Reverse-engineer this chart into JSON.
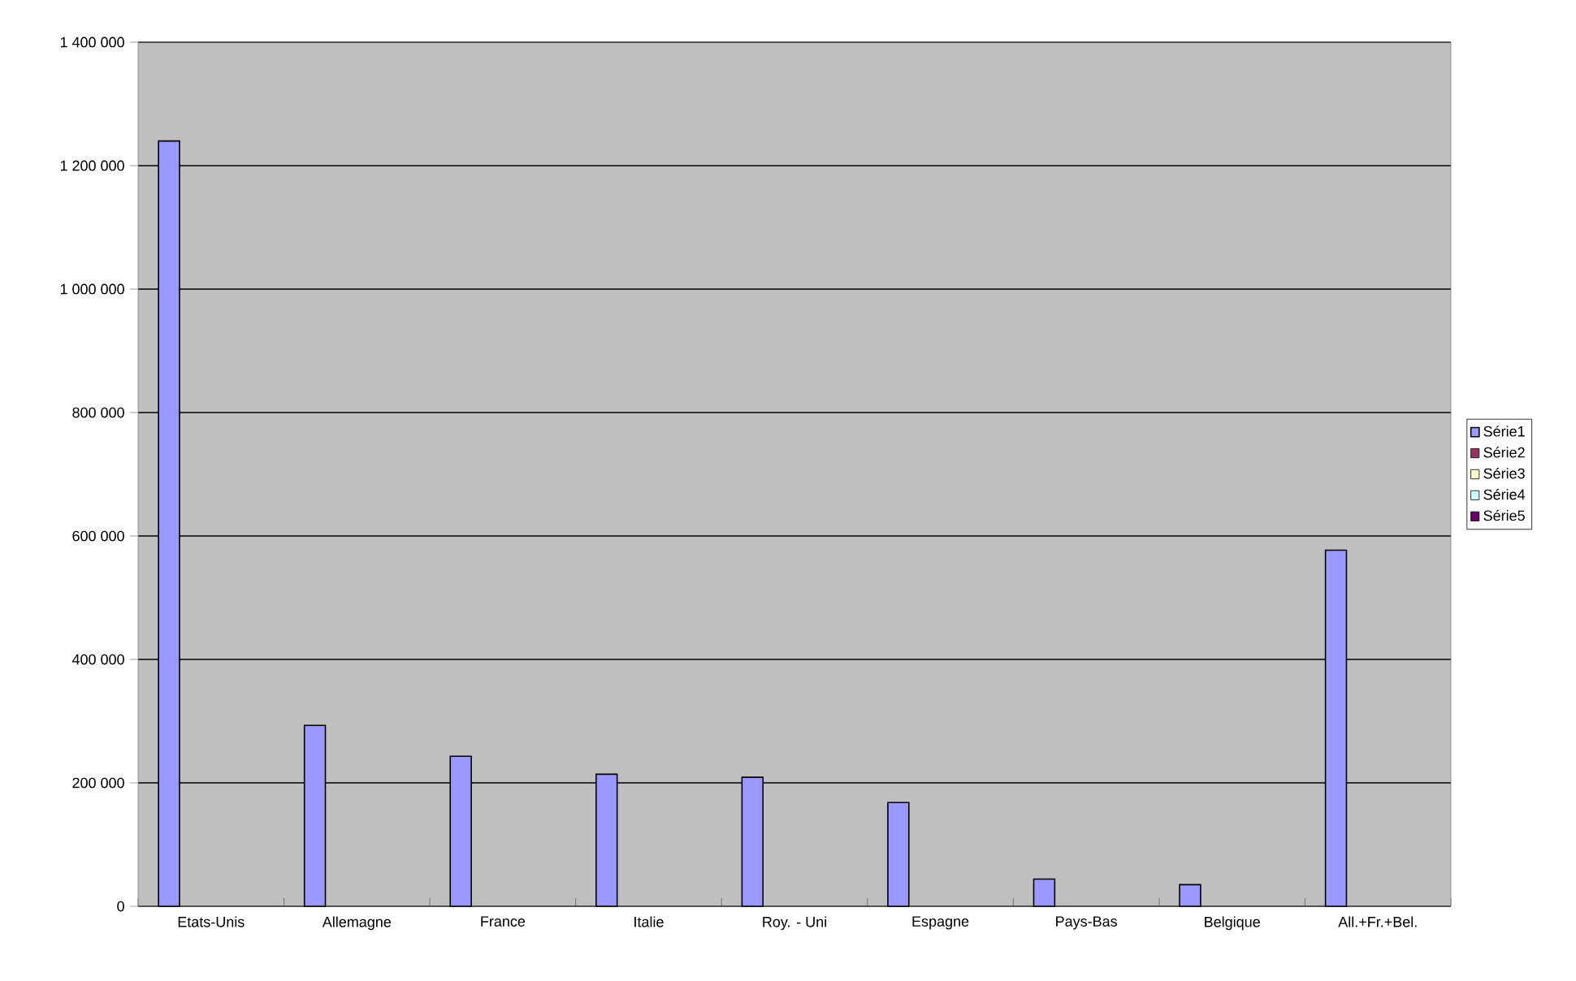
{
  "chart_data": {
    "type": "bar",
    "categories": [
      "Etats-Unis",
      "Allemagne",
      "France",
      "Italie",
      "Roy. - Uni",
      "Espagne",
      "Pays-Bas",
      "Belgique",
      "All.+Fr.+Bel."
    ],
    "series": [
      {
        "name": "Série1",
        "color": "#9999ff",
        "values": [
          1240000,
          293000,
          243000,
          214000,
          209000,
          168000,
          44000,
          35000,
          577000
        ]
      },
      {
        "name": "Série2",
        "color": "#993366",
        "values": [
          null,
          null,
          null,
          null,
          null,
          null,
          null,
          null,
          null
        ]
      },
      {
        "name": "Série3",
        "color": "#ffffcc",
        "values": [
          null,
          null,
          null,
          null,
          null,
          null,
          null,
          null,
          null
        ]
      },
      {
        "name": "Série4",
        "color": "#ccffff",
        "values": [
          null,
          null,
          null,
          null,
          null,
          null,
          null,
          null,
          null
        ]
      },
      {
        "name": "Série5",
        "color": "#660066",
        "values": [
          null,
          null,
          null,
          null,
          null,
          null,
          null,
          null,
          null
        ]
      }
    ],
    "ylim": [
      0,
      1400000
    ],
    "yticks": [
      {
        "value": 0,
        "label": "0"
      },
      {
        "value": 200000,
        "label": "200 000"
      },
      {
        "value": 400000,
        "label": "400 000"
      },
      {
        "value": 600000,
        "label": "600 000"
      },
      {
        "value": 800000,
        "label": "800 000"
      },
      {
        "value": 1000000,
        "label": "1 000 000"
      },
      {
        "value": 1200000,
        "label": "1 200 000"
      },
      {
        "value": 1400000,
        "label": "1 400 000"
      }
    ],
    "grid": "y",
    "legend": "right"
  }
}
